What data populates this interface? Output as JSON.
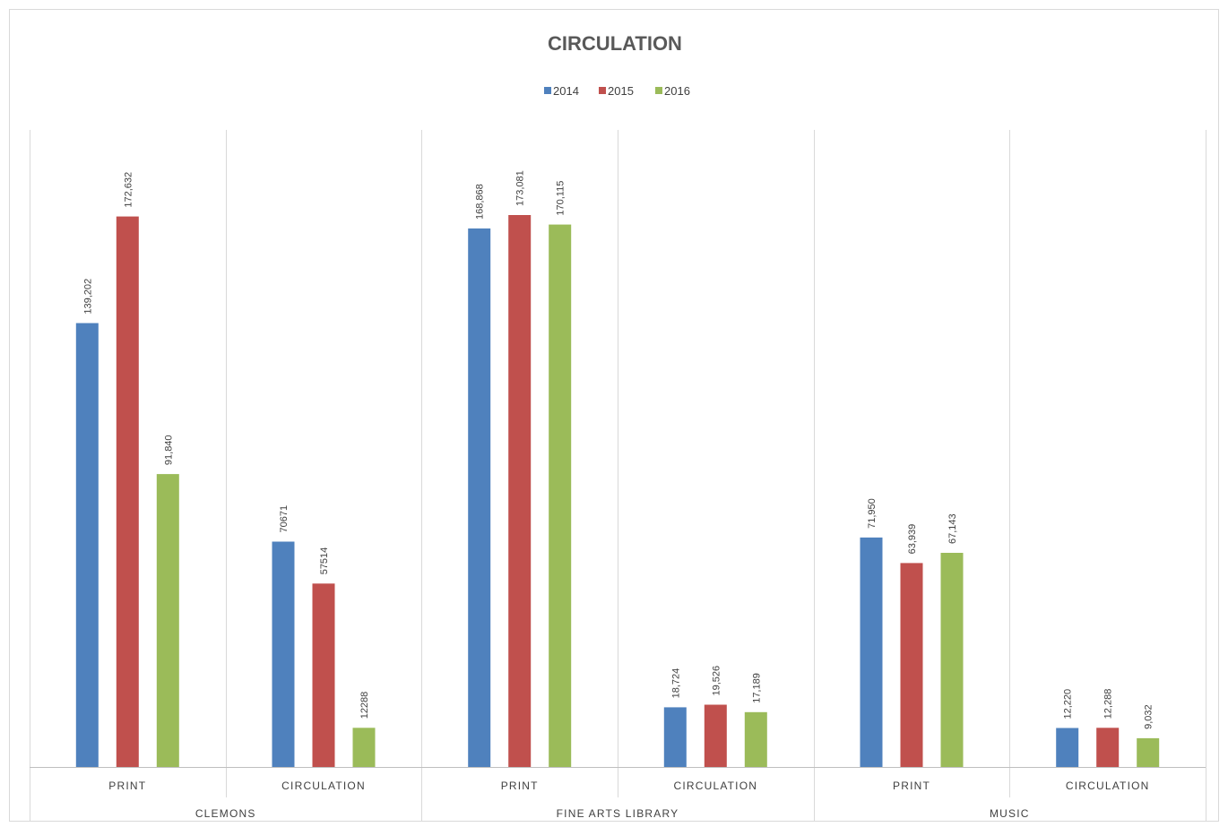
{
  "chart_data": {
    "type": "bar",
    "title": "CIRCULATION",
    "groups": [
      {
        "name": "CLEMONS",
        "categories": [
          "PRINT",
          "CIRCULATION"
        ]
      },
      {
        "name": "FINE ARTS LIBRARY",
        "categories": [
          "PRINT",
          "CIRCULATION"
        ]
      },
      {
        "name": "MUSIC",
        "categories": [
          "PRINT",
          "CIRCULATION"
        ]
      }
    ],
    "categories": [
      "CLEMONS / PRINT",
      "CLEMONS / CIRCULATION",
      "FINE ARTS LIBRARY / PRINT",
      "FINE ARTS LIBRARY / CIRCULATION",
      "MUSIC / PRINT",
      "MUSIC / CIRCULATION"
    ],
    "series": [
      {
        "name": "2014",
        "color": "#4F81BD",
        "values": [
          139202,
          70671,
          168868,
          18724,
          71950,
          12220
        ],
        "labels": [
          "139,202",
          "70671",
          "168,868",
          "18,724",
          "71,950",
          "12,220"
        ]
      },
      {
        "name": "2015",
        "color": "#C0504D",
        "values": [
          172632,
          57514,
          173081,
          19526,
          63939,
          12288
        ],
        "labels": [
          "172,632",
          "57514",
          "173,081",
          "19,526",
          "63,939",
          "12,288"
        ]
      },
      {
        "name": "2016",
        "color": "#9BBB59",
        "values": [
          91840,
          12288,
          170115,
          17189,
          67143,
          9032
        ],
        "labels": [
          "91,840",
          "12288",
          "170,115",
          "17,189",
          "67,143",
          "9,032"
        ]
      }
    ],
    "ylim": [
      0,
      200000
    ],
    "legend_position": "top",
    "grid": "vertical category separators"
  }
}
